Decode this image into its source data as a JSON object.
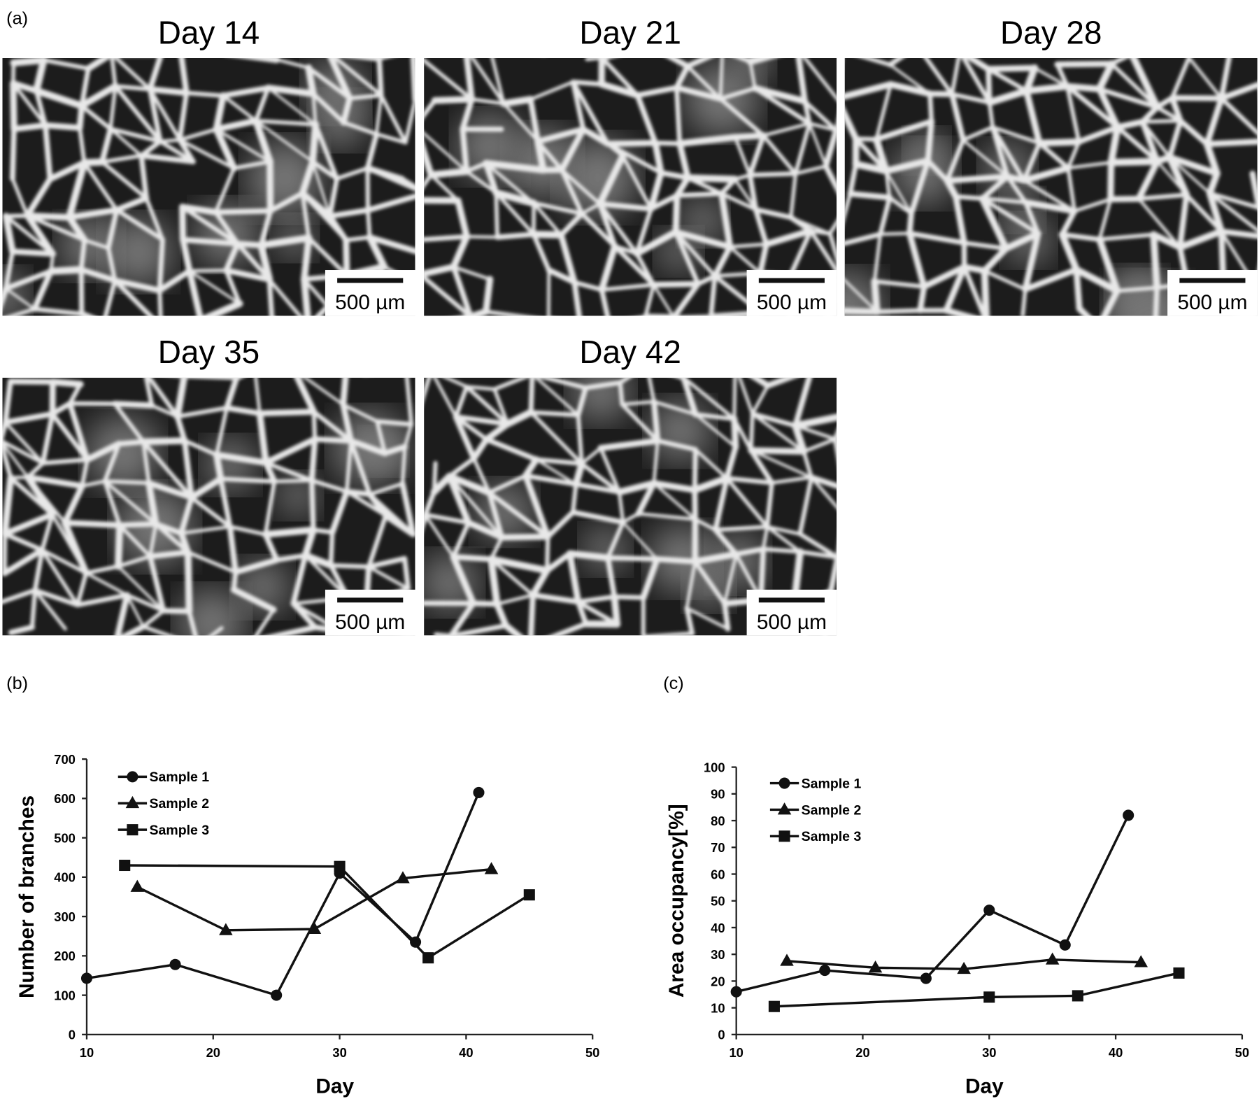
{
  "panel_labels": [
    "(a)",
    "(b)",
    "(c)"
  ],
  "images": [
    {
      "title": "Day 14",
      "scale_bar": "500 µm"
    },
    {
      "title": "Day 21",
      "scale_bar": "500 µm"
    },
    {
      "title": "Day 28",
      "scale_bar": "500 µm"
    },
    {
      "title": "Day 35",
      "scale_bar": "500 µm"
    },
    {
      "title": "Day 42",
      "scale_bar": "500 µm"
    }
  ],
  "chart_data": [
    {
      "type": "line",
      "xlabel": "Day",
      "ylabel": "Number of branches",
      "xlim": [
        10,
        50
      ],
      "xticks": [
        10,
        20,
        30,
        40,
        50
      ],
      "ylim": [
        0,
        700
      ],
      "yticks": [
        0,
        100,
        200,
        300,
        400,
        500,
        600,
        700
      ],
      "series": [
        {
          "name": "Sample 1",
          "color": "#111111",
          "marker": "circle",
          "x": [
            10,
            17,
            25,
            30,
            36,
            41
          ],
          "values": [
            143,
            178,
            100,
            410,
            235,
            615
          ]
        },
        {
          "name": "Sample 2",
          "color": "#111111",
          "marker": "triangle",
          "x": [
            14,
            21,
            28,
            35,
            42
          ],
          "values": [
            375,
            265,
            268,
            397,
            420
          ]
        },
        {
          "name": "Sample 3",
          "color": "#111111",
          "marker": "square",
          "x": [
            13,
            30,
            37,
            45
          ],
          "values": [
            430,
            427,
            195,
            355
          ]
        }
      ]
    },
    {
      "type": "line",
      "xlabel": "Day",
      "ylabel": "Area occupancy[%]",
      "xlim": [
        10,
        50
      ],
      "xticks": [
        10,
        20,
        30,
        40,
        50
      ],
      "ylim": [
        0,
        100
      ],
      "yticks": [
        0,
        10,
        20,
        30,
        40,
        50,
        60,
        70,
        80,
        90,
        100
      ],
      "series": [
        {
          "name": "Sample 1",
          "color": "#111111",
          "marker": "circle",
          "x": [
            10,
            17,
            25,
            30,
            36,
            41
          ],
          "values": [
            16,
            24,
            21,
            46.5,
            33.5,
            82
          ]
        },
        {
          "name": "Sample 2",
          "color": "#111111",
          "marker": "triangle",
          "x": [
            14,
            21,
            28,
            35,
            42
          ],
          "values": [
            27.5,
            25,
            24.5,
            28,
            27
          ]
        },
        {
          "name": "Sample 3",
          "color": "#111111",
          "marker": "square",
          "x": [
            13,
            30,
            37,
            45
          ],
          "values": [
            10.5,
            14,
            14.5,
            23
          ]
        }
      ]
    }
  ]
}
